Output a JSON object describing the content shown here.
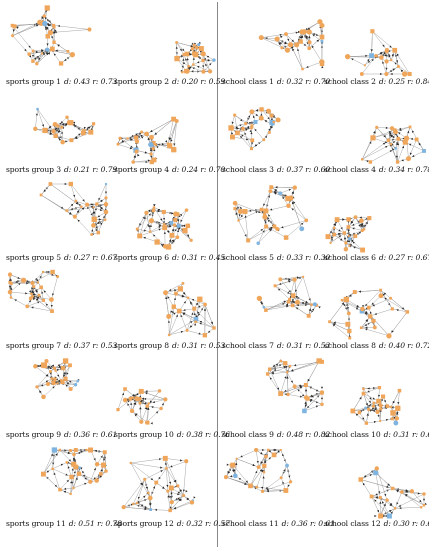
{
  "colors": {
    "node": "#f0a65a",
    "node_highlight": "#7eb4df",
    "edge": "#9a9a9a",
    "arrow": "#2b2b2b",
    "divider": "#888888"
  },
  "sections": [
    {
      "title": "",
      "panels": [
        {
          "label": "sports group 1",
          "d": "d: 0.43",
          "r": "r: 0.73"
        },
        {
          "label": "sports group 2",
          "d": "d: 0.20",
          "r": "r: 0.59"
        },
        {
          "label": "sports group 3",
          "d": "d: 0.21",
          "r": "r: 0.79"
        },
        {
          "label": "sports group 4",
          "d": "d: 0.24",
          "r": "r: 0.70"
        },
        {
          "label": "sports group 5",
          "d": "d: 0.27",
          "r": "r: 0.67"
        },
        {
          "label": "sports group 6",
          "d": "d: 0.31",
          "r": "r: 0.45"
        },
        {
          "label": "sports group 7",
          "d": "d: 0.37",
          "r": "r: 0.53"
        },
        {
          "label": "sports group 8",
          "d": "d: 0.31",
          "r": "r: 0.53"
        },
        {
          "label": "sports group 9",
          "d": "d: 0.36",
          "r": "r: 0.61"
        },
        {
          "label": "sports group 10",
          "d": "d: 0.38",
          "r": "r: 0.76"
        },
        {
          "label": "sports group 11",
          "d": "d: 0.51",
          "r": "r: 0.78"
        },
        {
          "label": "sports group 12",
          "d": "d: 0.32",
          "r": "r: 0.57"
        }
      ]
    },
    {
      "title": "",
      "panels": [
        {
          "label": "school class 1",
          "d": "d: 0.32",
          "r": "r: 0.70"
        },
        {
          "label": "school class 2",
          "d": "d: 0.25",
          "r": "r: 0.84"
        },
        {
          "label": "school class 3",
          "d": "d: 0.37",
          "r": "r: 0.60"
        },
        {
          "label": "school class 4",
          "d": "d: 0.34",
          "r": "r: 0.78"
        },
        {
          "label": "school class 5",
          "d": "d: 0.33",
          "r": "r: 0.30"
        },
        {
          "label": "school class 6",
          "d": "d: 0.27",
          "r": "r: 0.67"
        },
        {
          "label": "school class 7",
          "d": "d: 0.31",
          "r": "r: 0.53"
        },
        {
          "label": "school class 8",
          "d": "d: 0.40",
          "r": "r: 0.72"
        },
        {
          "label": "school class 9",
          "d": "d: 0.48",
          "r": "r: 0.82"
        },
        {
          "label": "school class 10",
          "d": "d: 0.31",
          "r": "r: 0.66"
        },
        {
          "label": "school class 11",
          "d": "d: 0.36",
          "r": "r: 0.61"
        },
        {
          "label": "school class 12",
          "d": "d: 0.30",
          "r": "r: 0.66"
        }
      ]
    }
  ]
}
